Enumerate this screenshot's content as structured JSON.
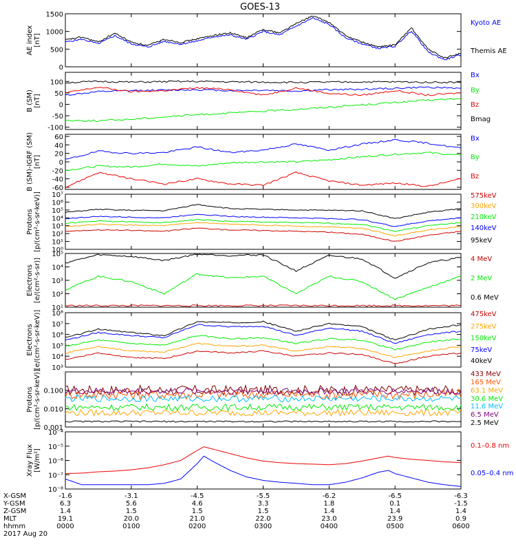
{
  "title": "GOES-13",
  "chart_data": [
    {
      "type": "line",
      "panel": "ae",
      "ylabel": [
        "AE index",
        "[nT]"
      ],
      "scale": "linear",
      "ylim": [
        0,
        1500
      ],
      "ticks": [
        "0",
        "500",
        "1000",
        "1500"
      ],
      "x_hours": [
        0,
        0.25,
        0.5,
        0.75,
        1.0,
        1.25,
        1.5,
        1.75,
        2.0,
        2.25,
        2.5,
        2.75,
        3.0,
        3.25,
        3.5,
        3.75,
        4.0,
        4.25,
        4.5,
        4.75,
        5.0,
        5.25,
        5.5,
        5.75,
        6.0
      ],
      "series": [
        {
          "name": "Kyoto AE",
          "color": "#0000ff",
          "values": [
            700,
            780,
            650,
            880,
            650,
            560,
            720,
            640,
            730,
            850,
            900,
            780,
            1000,
            900,
            1150,
            1380,
            1200,
            820,
            650,
            520,
            580,
            1020,
            420,
            200,
            340
          ]
        },
        {
          "name": "Themis AE",
          "color": "#000000",
          "values": [
            760,
            840,
            700,
            950,
            700,
            600,
            780,
            690,
            790,
            890,
            960,
            820,
            1060,
            960,
            1220,
            1440,
            1260,
            880,
            700,
            560,
            620,
            1100,
            500,
            250,
            380
          ]
        }
      ]
    },
    {
      "type": "line",
      "panel": "bsm",
      "ylabel": [
        "B (SM)",
        "[nT]"
      ],
      "scale": "linear",
      "ylim": [
        -110,
        140
      ],
      "ticks": [
        "-100",
        "-50",
        "0",
        "50",
        "100"
      ],
      "x_hours": [
        0,
        0.5,
        1.0,
        1.5,
        2.0,
        2.5,
        3.0,
        3.5,
        4.0,
        4.5,
        5.0,
        5.5,
        6.0
      ],
      "series": [
        {
          "name": "Bx",
          "color": "#0000ff",
          "values": [
            40,
            55,
            60,
            62,
            64,
            60,
            62,
            58,
            64,
            66,
            70,
            75,
            70
          ]
        },
        {
          "name": "By",
          "color": "#00ee00",
          "values": [
            -70,
            -72,
            -65,
            -55,
            -45,
            -38,
            -30,
            -22,
            -12,
            -2,
            8,
            18,
            25
          ]
        },
        {
          "name": "Bz",
          "color": "#ee0000",
          "values": [
            50,
            75,
            55,
            60,
            72,
            65,
            40,
            72,
            48,
            40,
            60,
            40,
            50
          ]
        },
        {
          "name": "Bmag",
          "color": "#000000",
          "values": [
            95,
            100,
            97,
            99,
            100,
            98,
            97,
            96,
            97,
            98,
            98,
            97,
            96
          ]
        }
      ]
    },
    {
      "type": "line",
      "panel": "bigrf",
      "ylabel": [
        "B (SM)-IGRF (SM)",
        "[nT]"
      ],
      "scale": "linear",
      "ylim": [
        -65,
        65
      ],
      "ticks": [
        "-60",
        "-40",
        "-20",
        "0",
        "20",
        "40",
        "60"
      ],
      "x_hours": [
        0,
        0.5,
        1.0,
        1.5,
        2.0,
        2.5,
        3.0,
        3.5,
        4.0,
        4.5,
        5.0,
        5.5,
        6.0
      ],
      "series": [
        {
          "name": "Bx",
          "color": "#0000ff",
          "values": [
            5,
            25,
            20,
            22,
            35,
            22,
            28,
            42,
            28,
            42,
            52,
            44,
            32
          ]
        },
        {
          "name": "By",
          "color": "#00ee00",
          "values": [
            -20,
            -10,
            -12,
            -5,
            -10,
            -2,
            0,
            0,
            5,
            12,
            18,
            22,
            15
          ]
        },
        {
          "name": "Bz",
          "color": "#ee0000",
          "values": [
            -60,
            -25,
            -40,
            -52,
            -40,
            -52,
            -55,
            -25,
            -45,
            -55,
            -50,
            -58,
            -40
          ]
        }
      ]
    },
    {
      "type": "line",
      "panel": "protons",
      "ylabel": [
        "Protons",
        "[p/(cm²-s-sr-keV)]"
      ],
      "scale": "log",
      "ylim": [
        1,
        10000000
      ],
      "ticks": [
        "10⁰",
        "10¹",
        "10²",
        "10³",
        "10⁴",
        "10⁵",
        "10⁶",
        "10⁷"
      ],
      "x_hours": [
        0,
        0.5,
        1.0,
        1.5,
        2.0,
        2.5,
        3.0,
        3.5,
        4.0,
        4.5,
        5.0,
        5.5,
        6.0
      ],
      "series": [
        {
          "name": "575keV",
          "color": "#cc0000",
          "values": [
            200,
            300,
            250,
            200,
            500,
            300,
            250,
            200,
            150,
            80,
            10,
            60,
            200
          ]
        },
        {
          "name": "300keV",
          "color": "#ffa500",
          "values": [
            800,
            1500,
            1200,
            1000,
            2500,
            1500,
            1200,
            900,
            700,
            500,
            50,
            300,
            800
          ]
        },
        {
          "name": "210keV",
          "color": "#00ee00",
          "values": [
            2000,
            4000,
            3000,
            2500,
            6000,
            3500,
            3000,
            2500,
            2000,
            1500,
            200,
            1000,
            2500
          ]
        },
        {
          "name": "140keV",
          "color": "#0000ff",
          "values": [
            8000,
            15000,
            12000,
            10000,
            30000,
            15000,
            12000,
            10000,
            8000,
            6000,
            800,
            4000,
            10000
          ]
        },
        {
          "name": "95keV",
          "color": "#000000",
          "values": [
            50000,
            120000,
            90000,
            80000,
            500000,
            150000,
            120000,
            100000,
            90000,
            80000,
            8000,
            50000,
            150000
          ]
        }
      ]
    },
    {
      "type": "line",
      "panel": "electrons_mev",
      "ylabel": [
        "Electrons",
        "[e/(cm²-s-sr)]"
      ],
      "scale": "log",
      "ylim": [
        10,
        100000
      ],
      "ticks": [
        "10¹",
        "10²",
        "10³",
        "10⁴",
        "10⁵"
      ],
      "x_hours": [
        0,
        0.5,
        1.0,
        1.5,
        2.0,
        2.5,
        3.0,
        3.5,
        4.0,
        4.5,
        5.0,
        5.5,
        6.0
      ],
      "series": [
        {
          "name": "4 MeV",
          "color": "#cc0000",
          "values": [
            13,
            13,
            13,
            13,
            13,
            13,
            13,
            13,
            13,
            13,
            13,
            13,
            13
          ]
        },
        {
          "name": "2 MeV",
          "color": "#00ee00",
          "values": [
            200,
            2000,
            800,
            100,
            3000,
            1500,
            2000,
            100,
            2000,
            800,
            40,
            300,
            2000
          ]
        },
        {
          "name": "0.6 MeV",
          "color": "#000000",
          "values": [
            20000,
            80000,
            60000,
            30000,
            90000,
            70000,
            80000,
            5000,
            70000,
            40000,
            1500,
            20000,
            50000
          ]
        }
      ]
    },
    {
      "type": "line",
      "panel": "electrons_kev",
      "ylabel": [
        "Electrons",
        "[e/(cm²-s-sr-keV)]"
      ],
      "scale": "log",
      "ylim": [
        1000,
        100000000
      ],
      "ticks": [
        "10³",
        "10⁴",
        "10⁵",
        "10⁶",
        "10⁷",
        "10⁸"
      ],
      "x_hours": [
        0,
        0.5,
        1.0,
        1.5,
        2.0,
        2.5,
        3.0,
        3.5,
        4.0,
        4.5,
        5.0,
        5.5,
        6.0
      ],
      "series": [
        {
          "name": "475keV",
          "color": "#cc0000",
          "values": [
            5000,
            20000,
            8000,
            6000,
            30000,
            20000,
            30000,
            10000,
            20000,
            15000,
            2000,
            10000,
            20000
          ]
        },
        {
          "name": "275keV",
          "color": "#ffa500",
          "values": [
            20000,
            80000,
            30000,
            25000,
            150000,
            80000,
            100000,
            30000,
            80000,
            50000,
            8000,
            30000,
            80000
          ]
        },
        {
          "name": "150keV",
          "color": "#00ee00",
          "values": [
            80000,
            300000,
            150000,
            100000,
            800000,
            400000,
            500000,
            150000,
            400000,
            300000,
            40000,
            200000,
            400000
          ]
        },
        {
          "name": "75keV",
          "color": "#0000ff",
          "values": [
            300000,
            1500000,
            800000,
            500000,
            8000000,
            5000000,
            6000000,
            800000,
            4000000,
            2000000,
            150000,
            1000000,
            2000000
          ]
        },
        {
          "name": "40keV",
          "color": "#000000",
          "values": [
            500000,
            3000000,
            1500000,
            800000,
            15000000,
            12000000,
            15000000,
            2000000,
            10000000,
            5000000,
            300000,
            3000000,
            8000000
          ]
        }
      ]
    },
    {
      "type": "line",
      "panel": "protons_mev",
      "ylabel": [
        "Protons",
        "[p/(cm²-s-sr-keV)]"
      ],
      "scale": "log",
      "ylim": [
        0.001,
        1
      ],
      "ticks": [
        "0.001",
        "0.010",
        "0.100"
      ],
      "x_hours": [
        0,
        6
      ],
      "series": [
        {
          "name": "433 MeV",
          "color": "#800000",
          "values": [
            0.1,
            0.1
          ]
        },
        {
          "name": "165 MeV",
          "color": "#ff5500",
          "values": [
            0.06,
            0.06
          ]
        },
        {
          "name": "63.1 MeV",
          "color": "#ffa500",
          "values": [
            0.006,
            0.006
          ]
        },
        {
          "name": "30.6 MeV",
          "color": "#00ee00",
          "values": [
            0.012,
            0.012
          ]
        },
        {
          "name": "11.6 MeV",
          "color": "#00bfff",
          "values": [
            0.035,
            0.035
          ]
        },
        {
          "name": "6.5 MeV",
          "color": "#800080",
          "values": [
            0.09,
            0.09
          ]
        },
        {
          "name": "2.5 MeV",
          "color": "#000000",
          "values": [
            0.002,
            0.002
          ]
        }
      ]
    },
    {
      "type": "line",
      "panel": "xray",
      "ylabel": [
        "Xray Flux",
        "[W/m²]"
      ],
      "scale": "log",
      "ylim": [
        1e-08,
        0.0001
      ],
      "ticks": [
        "10⁻⁸",
        "10⁻⁷",
        "10⁻⁶",
        "10⁻⁵",
        "10⁻⁴"
      ],
      "x_hours": [
        0,
        0.25,
        0.5,
        0.75,
        1.0,
        1.25,
        1.5,
        1.75,
        2.0,
        2.1,
        2.25,
        2.5,
        2.75,
        3.0,
        3.25,
        3.5,
        3.75,
        4.0,
        4.25,
        4.5,
        4.75,
        4.9,
        5.0,
        5.25,
        5.5,
        5.75,
        6.0
      ],
      "series": [
        {
          "name": "0.1–0.8 nm",
          "color": "#ee0000",
          "values": [
            1.2e-07,
            1.3e-07,
            1.6e-07,
            1.8e-07,
            2.2e-07,
            3e-07,
            5e-07,
            1e-06,
            5e-06,
            9e-06,
            6e-06,
            3e-06,
            1.5e-06,
            9e-07,
            7e-07,
            6e-07,
            5.5e-07,
            5e-07,
            6e-07,
            9e-07,
            1.5e-06,
            2e-06,
            1.6e-06,
            1.2e-06,
            1e-06,
            8e-07,
            7e-07
          ]
        },
        {
          "name": "0.05–0.4 nm",
          "color": "#0000ff",
          "values": [
            5e-08,
            2e-08,
            2e-08,
            2e-08,
            2e-08,
            2e-08,
            2.5e-08,
            5e-08,
            6e-07,
            2e-06,
            8e-07,
            2e-07,
            7e-08,
            4e-08,
            3e-08,
            2.5e-08,
            2e-08,
            2e-08,
            3e-08,
            6e-08,
            1.5e-07,
            2e-07,
            1.2e-07,
            6e-08,
            3e-08,
            2e-08,
            1.5e-08
          ]
        }
      ]
    }
  ],
  "legend_labels": {
    "ae": [
      "Kyoto AE",
      "Themis AE"
    ],
    "bsm": [
      "Bx",
      "By",
      "Bz",
      "Bmag"
    ],
    "bigrf": [
      "Bx",
      "By",
      "Bz"
    ],
    "protons": [
      "575keV",
      "300keV",
      "210keV",
      "140keV",
      "95keV"
    ],
    "electrons_mev": [
      "4 MeV",
      "2 MeV",
      "0.6 MeV"
    ],
    "electrons_kev": [
      "475keV",
      "275keV",
      "150keV",
      "75keV",
      "40keV"
    ],
    "protons_mev": [
      "433 MeV",
      "165 MeV",
      "63.1 MeV",
      "30.6 MeV",
      "11.6 MeV",
      "6.5 MeV",
      "2.5 MeV"
    ],
    "xray": [
      "0.1–0.8 nm",
      "0.05–0.4 nm"
    ]
  },
  "axis_table": {
    "labels": [
      "X-GSM",
      "Y-GSM",
      "Z-GSM",
      "MLT",
      "hhmm"
    ],
    "columns": [
      [
        "-1.6",
        "6.3",
        "1.4",
        "19.1",
        "0000"
      ],
      [
        "-3.1",
        "5.6",
        "1.5",
        "20.0",
        "0100"
      ],
      [
        "-4.5",
        "4.6",
        "1.5",
        "21.0",
        "0200"
      ],
      [
        "-5.5",
        "3.3",
        "1.5",
        "22.0",
        "0300"
      ],
      [
        "-6.2",
        "1.8",
        "1.4",
        "23.0",
        "0400"
      ],
      [
        "-6.5",
        "0.1",
        "1.4",
        "23.9",
        "0500"
      ],
      [
        "-6.3",
        "-1.5",
        "1.4",
        "0.9",
        "0600"
      ]
    ],
    "date": "2017 Aug 20"
  }
}
